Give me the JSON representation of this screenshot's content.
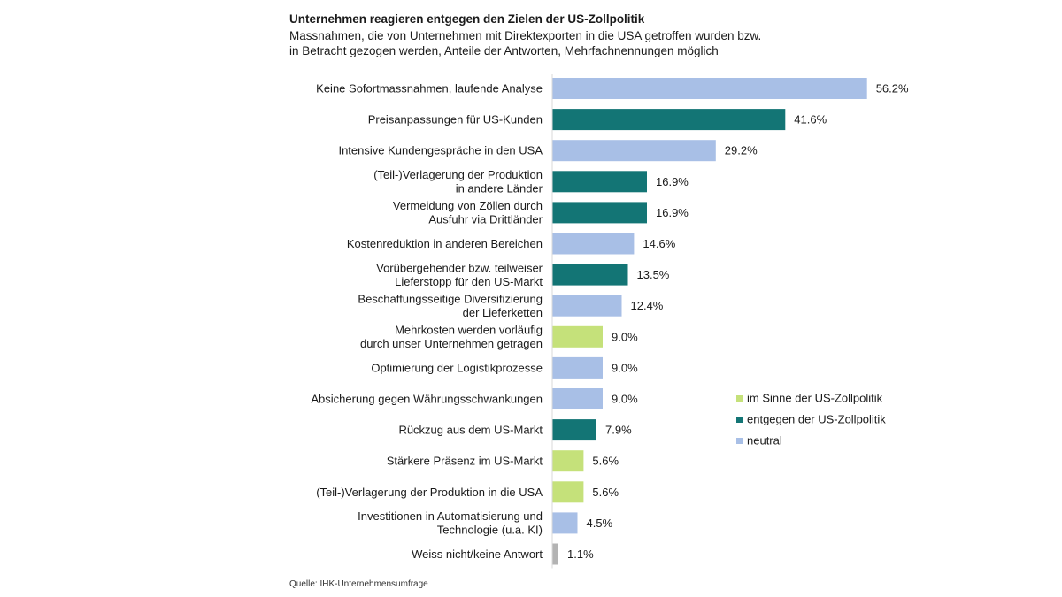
{
  "title": "Unternehmen reagieren entgegen den Zielen der US-Zollpolitik",
  "subtitle_line1": "Massnahmen, die von Unternehmen mit Direktexporten in die USA getroffen wurden bzw.",
  "subtitle_line2": "in Betracht gezogen werden, Anteile der Antworten, Mehrfachnennungen möglich",
  "source": "Quelle: IHK-Unternehmensumfrage",
  "colors": {
    "im_sinne": "#c5e17a",
    "entgegen": "#137575",
    "neutral": "#a8bfe6",
    "keine_antwort": "#b3b3b3"
  },
  "chart_data": {
    "type": "bar",
    "orientation": "horizontal",
    "value_unit": "%",
    "xlim": [
      0,
      60
    ],
    "grid": false,
    "legend": {
      "position": "right",
      "entries": [
        {
          "key": "im_sinne",
          "label": "im Sinne der US-Zollpolitik"
        },
        {
          "key": "entgegen",
          "label": "entgegen der US-Zollpolitik"
        },
        {
          "key": "neutral",
          "label": "neutral"
        }
      ]
    },
    "bars": [
      {
        "label": [
          "Keine Sofortmassnahmen, laufende Analyse"
        ],
        "value": 56.2,
        "value_label": "56.2%",
        "category": "neutral"
      },
      {
        "label": [
          "Preisanpassungen für US-Kunden"
        ],
        "value": 41.6,
        "value_label": "41.6%",
        "category": "entgegen"
      },
      {
        "label": [
          "Intensive Kundengespräche in den USA"
        ],
        "value": 29.2,
        "value_label": "29.2%",
        "category": "neutral"
      },
      {
        "label": [
          "(Teil-)Verlagerung der Produktion",
          "in andere Länder"
        ],
        "value": 16.9,
        "value_label": "16.9%",
        "category": "entgegen"
      },
      {
        "label": [
          "Vermeidung von Zöllen durch",
          "Ausfuhr via Drittländer"
        ],
        "value": 16.9,
        "value_label": "16.9%",
        "category": "entgegen"
      },
      {
        "label": [
          "Kostenreduktion in anderen Bereichen"
        ],
        "value": 14.6,
        "value_label": "14.6%",
        "category": "neutral"
      },
      {
        "label": [
          "Vorübergehender bzw. teilweiser",
          "Lieferstopp für den US-Markt"
        ],
        "value": 13.5,
        "value_label": "13.5%",
        "category": "entgegen"
      },
      {
        "label": [
          "Beschaffungsseitige Diversifizierung",
          "der Lieferketten"
        ],
        "value": 12.4,
        "value_label": "12.4%",
        "category": "neutral"
      },
      {
        "label": [
          "Mehrkosten werden vorläufig",
          "durch unser Unternehmen getragen"
        ],
        "value": 9.0,
        "value_label": "9.0%",
        "category": "im_sinne"
      },
      {
        "label": [
          "Optimierung der Logistikprozesse"
        ],
        "value": 9.0,
        "value_label": "9.0%",
        "category": "neutral"
      },
      {
        "label": [
          "Absicherung gegen Währungsschwankungen"
        ],
        "value": 9.0,
        "value_label": "9.0%",
        "category": "neutral"
      },
      {
        "label": [
          "Rückzug aus dem US-Markt"
        ],
        "value": 7.9,
        "value_label": "7.9%",
        "category": "entgegen"
      },
      {
        "label": [
          "Stärkere Präsenz im US-Markt"
        ],
        "value": 5.6,
        "value_label": "5.6%",
        "category": "im_sinne"
      },
      {
        "label": [
          "(Teil-)Verlagerung der Produktion in die USA"
        ],
        "value": 5.6,
        "value_label": "5.6%",
        "category": "im_sinne"
      },
      {
        "label": [
          "Investitionen in Automatisierung und",
          "Technologie (u.a. KI)"
        ],
        "value": 4.5,
        "value_label": "4.5%",
        "category": "neutral"
      },
      {
        "label": [
          "Weiss nicht/keine Antwort"
        ],
        "value": 1.1,
        "value_label": "1.1%",
        "category": "keine_antwort"
      }
    ]
  }
}
